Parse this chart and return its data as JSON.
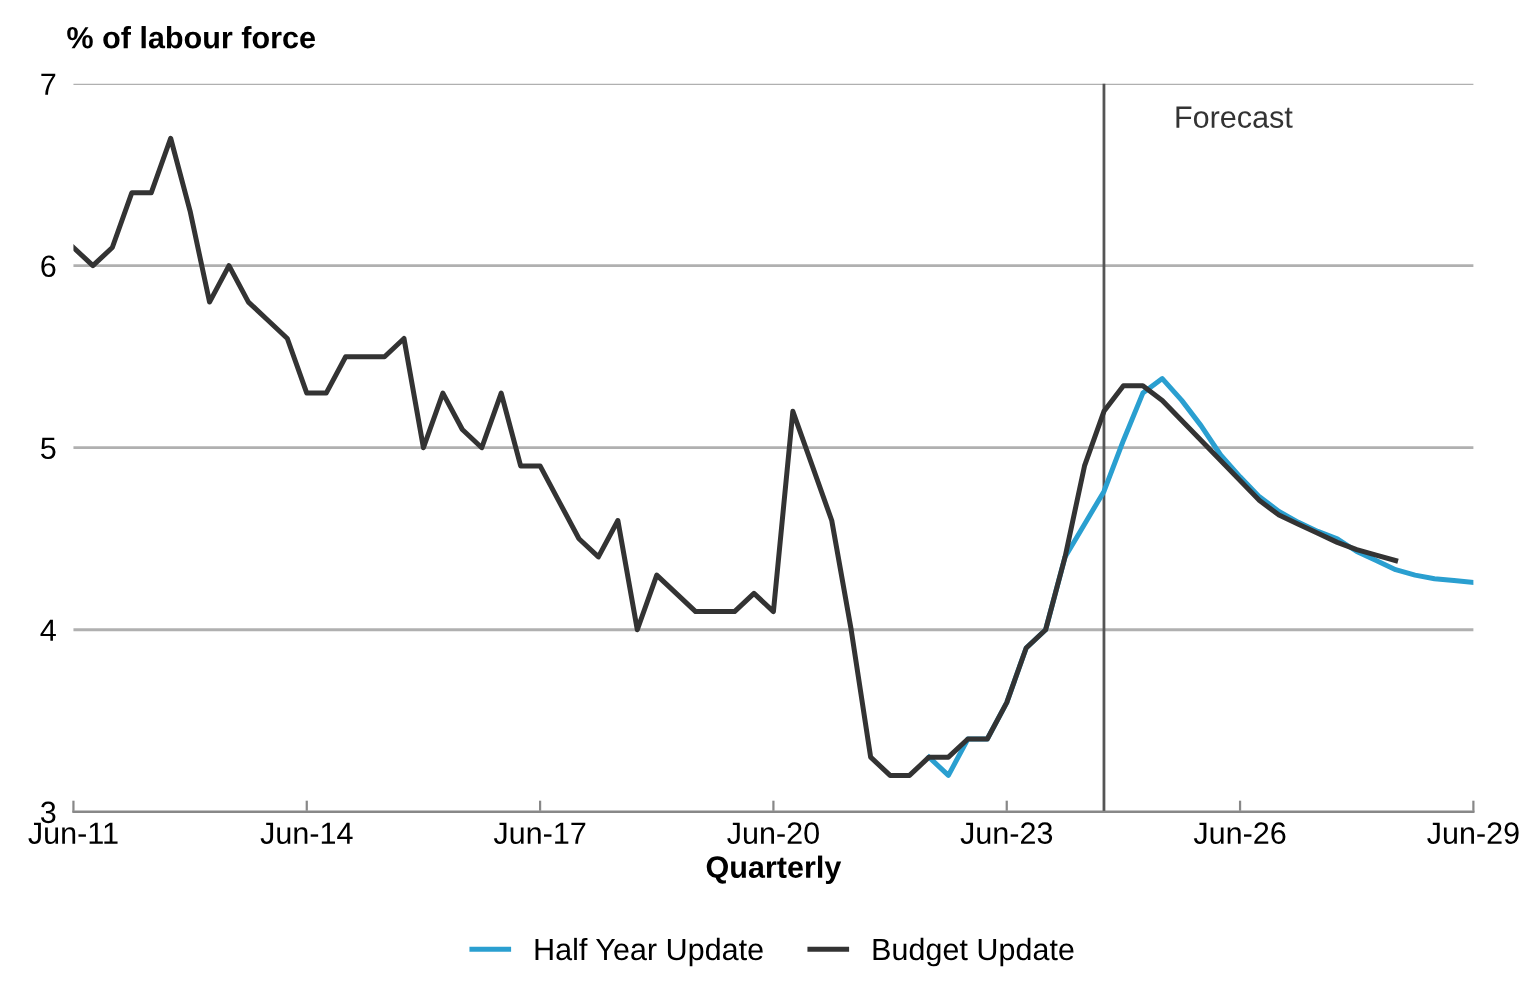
{
  "chart_data": {
    "type": "line",
    "ylabel": "% of labour force",
    "xlabel": "Quarterly",
    "xlim": [
      "2011-06",
      "2029-06"
    ],
    "xticks": [
      {
        "value": "2011-06",
        "label": "Jun-11"
      },
      {
        "value": "2014-06",
        "label": "Jun-14"
      },
      {
        "value": "2017-06",
        "label": "Jun-17"
      },
      {
        "value": "2020-06",
        "label": "Jun-20"
      },
      {
        "value": "2023-06",
        "label": "Jun-23"
      },
      {
        "value": "2026-06",
        "label": "Jun-26"
      },
      {
        "value": "2029-06",
        "label": "Jun-29"
      }
    ],
    "ylim": [
      3,
      7
    ],
    "yticks": [
      3,
      4,
      5,
      6,
      7
    ],
    "grid": "y",
    "legend": "bottom",
    "marker": "none",
    "line_style": "solid",
    "ref_lines": [
      {
        "axis": "x",
        "value": "2024-09",
        "label": "Forecast",
        "color": "#555555"
      }
    ],
    "series": [
      {
        "name": "Half Year Update",
        "color": "#2a9fd0",
        "x": [
          "2022-06",
          "2022-09",
          "2022-12",
          "2023-03",
          "2023-06",
          "2023-09",
          "2023-12",
          "2024-03",
          "2024-06",
          "2024-09",
          "2024-12",
          "2025-03",
          "2025-06",
          "2025-09",
          "2025-12",
          "2026-03",
          "2026-06",
          "2026-09",
          "2026-12",
          "2027-03",
          "2027-06",
          "2027-09",
          "2027-12",
          "2028-03",
          "2028-06",
          "2028-09",
          "2028-12",
          "2029-03",
          "2029-06"
        ],
        "values": [
          3.3,
          3.2,
          3.4,
          3.4,
          3.6,
          3.9,
          4.0,
          4.4,
          4.58,
          4.76,
          5.04,
          5.3,
          5.38,
          5.26,
          5.12,
          4.96,
          4.84,
          4.73,
          4.65,
          4.59,
          4.54,
          4.5,
          4.43,
          4.38,
          4.33,
          4.3,
          4.28,
          4.27,
          4.26
        ]
      },
      {
        "name": "Budget Update",
        "color": "#333333",
        "x": [
          "2011-06",
          "2011-09",
          "2011-12",
          "2012-03",
          "2012-06",
          "2012-09",
          "2012-12",
          "2013-03",
          "2013-06",
          "2013-09",
          "2013-12",
          "2014-03",
          "2014-06",
          "2014-09",
          "2014-12",
          "2015-03",
          "2015-06",
          "2015-09",
          "2015-12",
          "2016-03",
          "2016-06",
          "2016-09",
          "2016-12",
          "2017-03",
          "2017-06",
          "2017-09",
          "2017-12",
          "2018-03",
          "2018-06",
          "2018-09",
          "2018-12",
          "2019-03",
          "2019-06",
          "2019-09",
          "2019-12",
          "2020-03",
          "2020-06",
          "2020-09",
          "2020-12",
          "2021-03",
          "2021-06",
          "2021-09",
          "2021-12",
          "2022-03",
          "2022-06",
          "2022-09",
          "2022-12",
          "2023-03",
          "2023-06",
          "2023-09",
          "2023-12",
          "2024-03",
          "2024-06",
          "2024-09",
          "2024-12",
          "2025-03",
          "2025-06",
          "2025-09",
          "2025-12",
          "2026-03",
          "2026-06",
          "2026-09",
          "2026-12",
          "2027-03",
          "2027-06",
          "2027-09",
          "2027-12",
          "2028-03",
          "2028-06"
        ],
        "values": [
          6.1,
          6.0,
          6.1,
          6.4,
          6.4,
          6.7,
          6.3,
          5.8,
          6.0,
          5.8,
          5.7,
          5.6,
          5.3,
          5.3,
          5.5,
          5.5,
          5.5,
          5.6,
          5.0,
          5.3,
          5.1,
          5.0,
          5.3,
          4.9,
          4.9,
          4.7,
          4.5,
          4.4,
          4.6,
          4.0,
          4.3,
          4.2,
          4.1,
          4.1,
          4.1,
          4.2,
          4.1,
          5.2,
          4.9,
          4.6,
          4.0,
          3.3,
          3.2,
          3.2,
          3.3,
          3.3,
          3.4,
          3.4,
          3.6,
          3.9,
          4.0,
          4.4,
          4.9,
          5.2,
          5.34,
          5.34,
          5.26,
          5.15,
          5.04,
          4.93,
          4.82,
          4.71,
          4.63,
          4.58,
          4.53,
          4.48,
          4.44,
          4.41,
          4.38
        ]
      }
    ]
  }
}
